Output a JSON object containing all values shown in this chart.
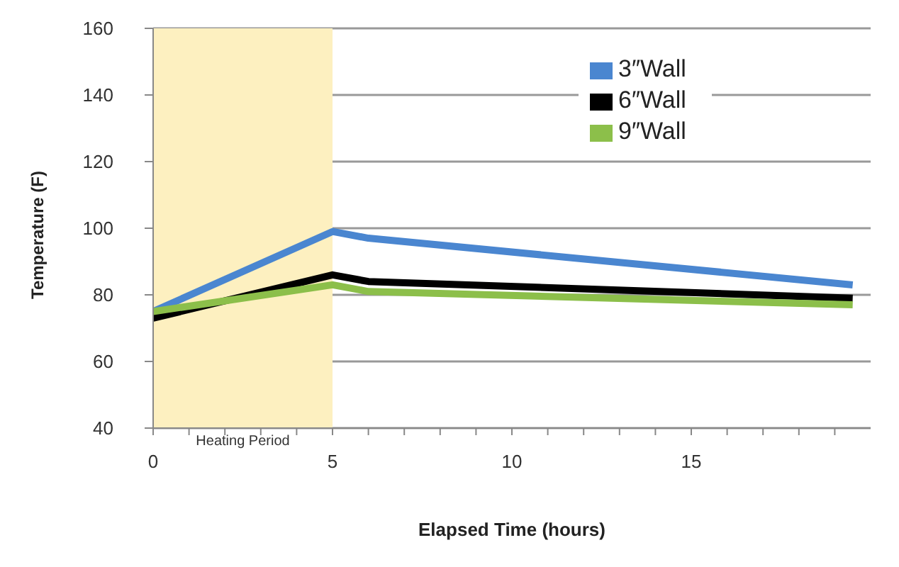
{
  "chart_data": {
    "type": "line",
    "xlabel": "Elapsed Time (hours)",
    "ylabel": "Temperature (F)",
    "x": [
      0,
      5,
      6,
      19.5
    ],
    "series": [
      {
        "name": "3″Wall",
        "color": "#4a86d0",
        "values": [
          75,
          99,
          97,
          83
        ]
      },
      {
        "name": "6″Wall",
        "color": "#000000",
        "values": [
          73,
          86,
          84,
          79
        ]
      },
      {
        "name": "9″Wall",
        "color": "#8cbf4a",
        "values": [
          75,
          83,
          81,
          77
        ]
      }
    ],
    "xlim": [
      0,
      20
    ],
    "xticks": [
      0,
      {
        "value": 1,
        "label": null
      },
      {
        "value": 2,
        "label": null
      },
      {
        "value": 3,
        "label": null
      },
      {
        "value": 4,
        "label": null
      },
      5,
      {
        "value": 6,
        "label": null
      },
      {
        "value": 7,
        "label": null
      },
      {
        "value": 8,
        "label": null
      },
      {
        "value": 9,
        "label": null
      },
      10,
      {
        "value": 11,
        "label": null
      },
      {
        "value": 12,
        "label": null
      },
      {
        "value": 13,
        "label": null
      },
      {
        "value": 14,
        "label": null
      },
      15,
      {
        "value": 16,
        "label": null
      },
      {
        "value": 17,
        "label": null
      },
      {
        "value": 18,
        "label": null
      },
      {
        "value": 19,
        "label": null
      }
    ],
    "ylim": [
      40,
      160
    ],
    "yticks": [
      40,
      60,
      80,
      100,
      120,
      140,
      160
    ],
    "bands": [
      {
        "axis": "x",
        "from": 0,
        "to": 5,
        "label": "Heating Period",
        "color": "#fdf0c0"
      }
    ],
    "grid": "y",
    "legend": "top right",
    "marker": "none",
    "line_style": "solid"
  }
}
